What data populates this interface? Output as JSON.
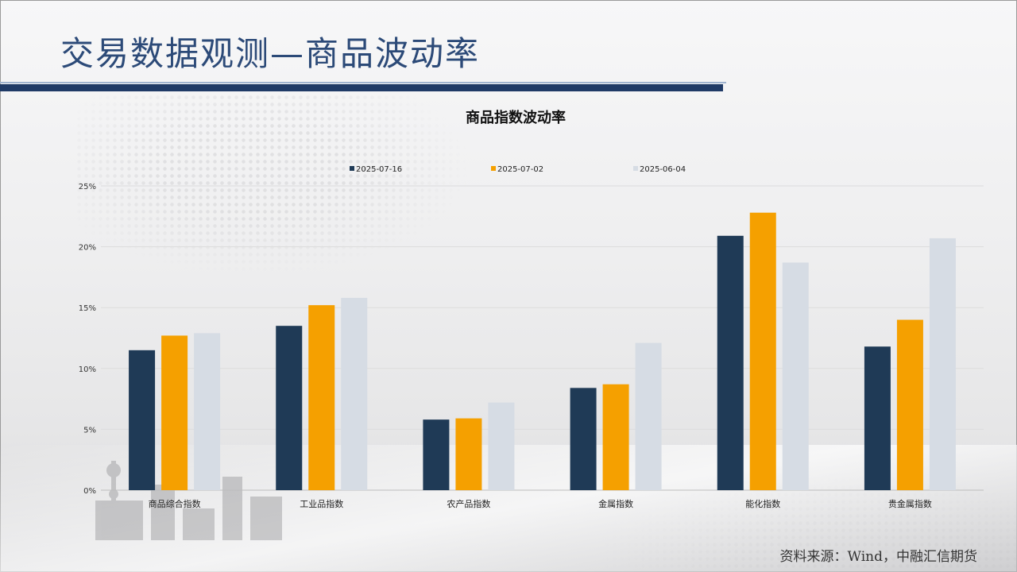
{
  "slide": {
    "title": "交易数据观测—商品波动率",
    "source": "资料来源：Wind，中融汇信期货"
  },
  "colors": {
    "title": "#2c4a78",
    "bar_primary": "#1f3a56",
    "bar_secondary": "#f5a000",
    "bar_tertiary": "#d6dce4"
  },
  "chart_data": {
    "type": "bar",
    "title": "商品指数波动率",
    "categories": [
      "商品综合指数",
      "工业品指数",
      "农产品指数",
      "金属指数",
      "能化指数",
      "贵金属指数"
    ],
    "series": [
      {
        "name": "2025-07-16",
        "color": "#1f3a56",
        "values": [
          11.5,
          13.5,
          5.8,
          8.4,
          20.9,
          11.8
        ]
      },
      {
        "name": "2025-07-02",
        "color": "#f5a000",
        "values": [
          12.7,
          15.2,
          5.9,
          8.7,
          22.8,
          14.0
        ]
      },
      {
        "name": "2025-06-04",
        "color": "#d6dce4",
        "values": [
          12.9,
          15.8,
          7.2,
          12.1,
          18.7,
          20.7
        ]
      }
    ],
    "yticks": [
      "0%",
      "5%",
      "10%",
      "15%",
      "20%",
      "25%"
    ],
    "ylim": [
      0,
      25
    ],
    "grid": true,
    "legend": "top-center"
  }
}
